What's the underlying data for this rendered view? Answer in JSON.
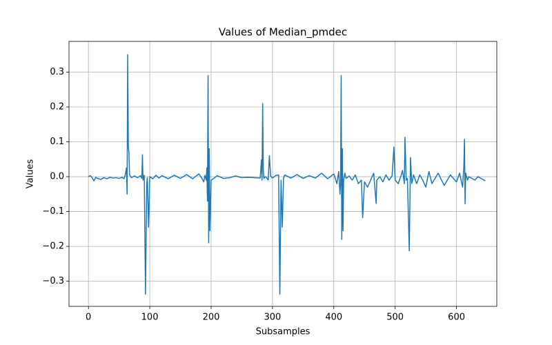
{
  "chart_data": {
    "type": "line",
    "title": "Values of Median_pmdec",
    "x_label": "Subsamples",
    "y_label": "Values",
    "x": [
      0,
      3,
      6,
      9,
      12,
      15,
      20,
      25,
      30,
      35,
      40,
      45,
      50,
      55,
      58,
      60,
      62,
      63,
      64,
      65,
      66,
      67,
      70,
      75,
      80,
      85,
      87,
      88,
      89,
      91,
      93,
      95,
      96,
      98,
      100,
      105,
      110,
      115,
      120,
      130,
      140,
      150,
      160,
      170,
      180,
      185,
      188,
      190,
      192,
      193,
      194,
      195,
      196,
      197,
      198,
      200,
      205,
      210,
      220,
      230,
      240,
      250,
      260,
      270,
      280,
      282,
      283,
      284,
      285,
      286,
      288,
      290,
      293,
      295,
      297,
      300,
      305,
      310,
      312,
      314,
      316,
      318,
      320,
      330,
      340,
      350,
      360,
      370,
      380,
      390,
      400,
      405,
      408,
      410,
      411,
      412,
      413,
      414,
      415,
      416,
      418,
      420,
      425,
      430,
      435,
      440,
      445,
      447,
      450,
      455,
      460,
      465,
      469,
      470,
      475,
      480,
      485,
      490,
      495,
      498,
      500,
      505,
      510,
      512,
      515,
      516,
      518,
      520,
      523,
      525,
      527,
      530,
      535,
      540,
      545,
      550,
      555,
      560,
      570,
      580,
      590,
      600,
      605,
      610,
      612,
      613,
      614,
      615,
      618,
      620,
      625,
      630,
      635,
      640,
      645,
      647
    ],
    "values": [
      0,
      0.003,
      -0.003,
      -0.012,
      -0.002,
      -0.005,
      -0.008,
      -0.003,
      -0.006,
      -0.002,
      -0.004,
      -0.003,
      -0.005,
      -0.002,
      -0.006,
      0.005,
      0.025,
      -0.05,
      0.35,
      0.085,
      0.07,
      0.005,
      -0.003,
      0.002,
      -0.003,
      0.003,
      -0.005,
      0.063,
      -0.01,
      0.004,
      -0.337,
      -0.02,
      -0.003,
      -0.145,
      0.0,
      -0.006,
      0.004,
      -0.004,
      0.003,
      -0.006,
      0.004,
      -0.005,
      0.006,
      -0.006,
      0.008,
      -0.005,
      -0.015,
      0.004,
      -0.01,
      0.025,
      -0.07,
      0.29,
      -0.19,
      0.08,
      -0.155,
      -0.01,
      -0.004,
      0.003,
      -0.005,
      -0.003,
      0.002,
      -0.003,
      -0.002,
      -0.003,
      -0.004,
      0.048,
      -0.01,
      0.21,
      0.02,
      -0.005,
      0.0,
      -0.002,
      -0.01,
      0.06,
      0.002,
      -0.004,
      0.003,
      0.005,
      -0.337,
      -0.01,
      -0.145,
      -0.005,
      0.005,
      -0.004,
      0.006,
      -0.005,
      0.003,
      -0.004,
      0.01,
      -0.006,
      0.008,
      -0.02,
      0.015,
      -0.05,
      -0.02,
      0.29,
      -0.18,
      0.08,
      -0.155,
      -0.01,
      0.01,
      -0.005,
      0.002,
      -0.01,
      0.005,
      -0.02,
      -0.01,
      -0.118,
      -0.015,
      -0.03,
      -0.01,
      0.01,
      -0.077,
      -0.01,
      0.0,
      -0.015,
      0.005,
      -0.01,
      0.002,
      0.085,
      -0.01,
      -0.02,
      0.005,
      0.018,
      -0.02,
      0.113,
      -0.01,
      -0.005,
      -0.213,
      0.055,
      -0.02,
      0.005,
      -0.02,
      0.005,
      -0.01,
      -0.03,
      0.015,
      -0.02,
      0.01,
      -0.025,
      0.005,
      -0.015,
      0.01,
      -0.03,
      0.03,
      0.107,
      -0.078,
      0.01,
      -0.01,
      0.0,
      -0.005,
      -0.01,
      0.0,
      -0.005,
      -0.01,
      -0.012
    ],
    "color": "#1f77b4",
    "xlim": [
      -31.7,
      665.7
    ],
    "xticks": [
      0,
      100,
      200,
      300,
      400,
      500,
      600
    ],
    "ylim": [
      -0.372,
      0.388
    ],
    "yticks": [
      {
        "value": -0.3,
        "label": "−0.3"
      },
      {
        "value": -0.2,
        "label": "−0.2"
      },
      {
        "value": -0.1,
        "label": "−0.1"
      },
      {
        "value": 0,
        "label": "0.0"
      },
      {
        "value": 0.1,
        "label": "0.1"
      },
      {
        "value": 0.2,
        "label": "0.2"
      },
      {
        "value": 0.3,
        "label": "0.3"
      }
    ],
    "grid": true
  }
}
